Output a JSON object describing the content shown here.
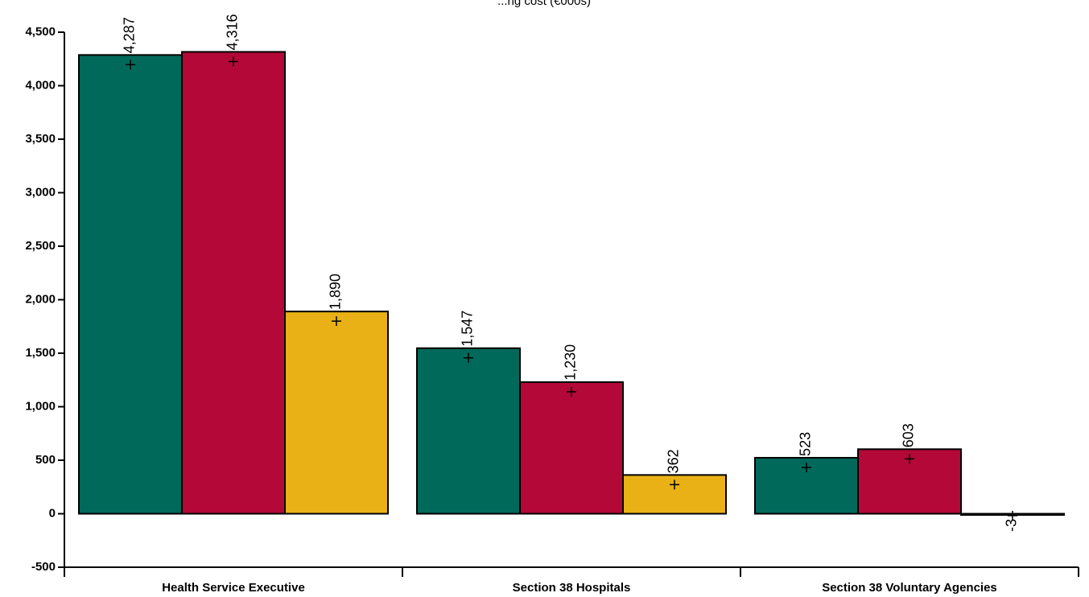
{
  "chart_data": {
    "type": "bar",
    "title": "...ng cost (€000s)",
    "categories": [
      "Health Service Executive",
      "Section 38 Hospitals",
      "Section 38 Voluntary Agencies"
    ],
    "series": [
      {
        "color": "#00695a",
        "values": [
          4287,
          1547,
          523
        ],
        "labels": [
          "4,287",
          "1,547",
          "523"
        ]
      },
      {
        "color": "#b30838",
        "values": [
          4316,
          1230,
          603
        ],
        "labels": [
          "4,316",
          "1,230",
          "603"
        ]
      },
      {
        "color": "#e9b116",
        "values": [
          1890,
          362,
          -3
        ],
        "labels": [
          "1,890",
          "362",
          "-3"
        ]
      }
    ],
    "ylim": [
      -500,
      4500
    ],
    "yticks": [
      -500,
      0,
      500,
      1000,
      1500,
      2000,
      2500,
      3000,
      3500,
      4000,
      4500
    ],
    "ytick_labels": [
      "-500",
      "0",
      "500",
      "1,000",
      "1,500",
      "2,000",
      "2,500",
      "3,000",
      "3,500",
      "4,000",
      "4,500"
    ],
    "grid": false,
    "legend": "none"
  }
}
